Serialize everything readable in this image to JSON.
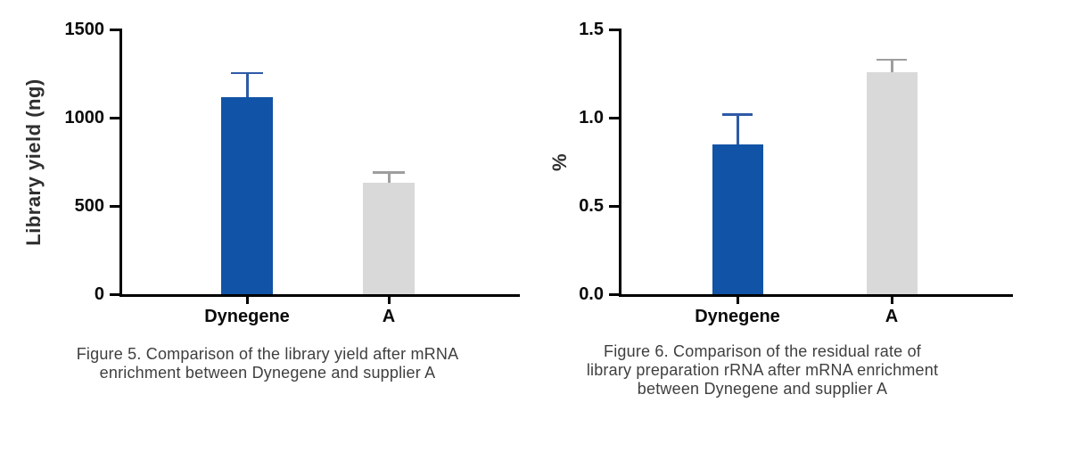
{
  "page": {
    "background": "#ffffff"
  },
  "chart_data": [
    {
      "id": "library-yield",
      "type": "bar",
      "title": "",
      "ylabel": "Library yield (ng)",
      "xlabel": "",
      "categories": [
        "Dynegene",
        "A"
      ],
      "values": [
        1115,
        630
      ],
      "error_upper": [
        140,
        60
      ],
      "ylim": [
        0,
        1500
      ],
      "yticks": [
        {
          "value": 0,
          "label": "0"
        },
        {
          "value": 500,
          "label": "500"
        },
        {
          "value": 1000,
          "label": "1000"
        },
        {
          "value": 1500,
          "label": "1500"
        }
      ],
      "grid": false,
      "legend": "none",
      "bar_colors": [
        "#1153a6",
        "#d9d9d9"
      ],
      "error_colors": [
        "#2e5aa7",
        "#9e9e9e"
      ]
    },
    {
      "id": "rrna-residual-rate",
      "type": "bar",
      "title": "",
      "ylabel": "%",
      "xlabel": "",
      "categories": [
        "Dynegene",
        "A"
      ],
      "values": [
        0.85,
        1.26
      ],
      "error_upper": [
        0.17,
        0.07
      ],
      "ylim": [
        0,
        1.5
      ],
      "yticks": [
        {
          "value": 0,
          "label": "0.0"
        },
        {
          "value": 0.5,
          "label": "0.5"
        },
        {
          "value": 1.0,
          "label": "1.0"
        },
        {
          "value": 1.5,
          "label": "1.5"
        }
      ],
      "grid": false,
      "legend": "none",
      "bar_colors": [
        "#1153a6",
        "#d9d9d9"
      ],
      "error_colors": [
        "#2e5aa7",
        "#9e9e9e"
      ]
    }
  ],
  "captions": [
    {
      "name": "figure-5",
      "lines": [
        "Figure 5. Comparison of the library yield after mRNA",
        "enrichment between Dynegene and supplier A"
      ]
    },
    {
      "name": "figure-6",
      "lines": [
        "Figure 6. Comparison of the residual rate of",
        "library preparation rRNA after mRNA enrichment",
        "between Dynegene and supplier A"
      ]
    }
  ],
  "colors": {
    "axis": "#000000",
    "tick_label": "#0a0a0a",
    "axis_title": "#2f2f2f",
    "caption_text": "#3f3f3f"
  }
}
